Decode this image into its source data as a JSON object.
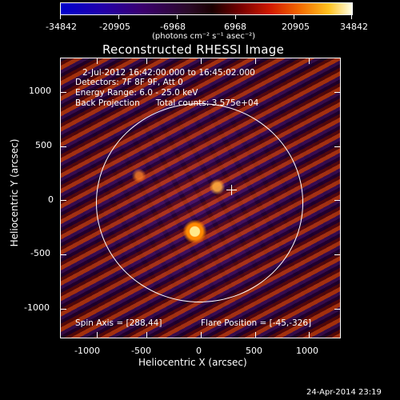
{
  "colorbar": {
    "tick_labels": [
      "-34842",
      "-20905",
      "-6968",
      "6968",
      "20905",
      "34842"
    ],
    "unit_label": "(photons cm⁻² s⁻¹ asec⁻²)",
    "colors": [
      "#0000cc",
      "#3b006e",
      "#1a0000",
      "#d11a00",
      "#f26a00",
      "#ffffe8"
    ]
  },
  "plot": {
    "title": "Reconstructed RHESSI Image",
    "info_lines": [
      "2-Jul-2012 16:42:00.000 to 16:45:02.000",
      "Detectors: 7F 8F 9F, Att 0",
      "Energy Range: 6.0 - 25.0 keV",
      "Back Projection      Total counts: 3.575e+04"
    ],
    "spin_axis": "Spin Axis = [288,44]",
    "flare_position": "Flare Position = [-45,-326]",
    "x_axis_label": "Heliocentric X (arcsec)",
    "y_axis_label": "Heliocentric Y (arcsec)",
    "x_ticks": [
      "-1000",
      "-500",
      "0",
      "500",
      "1000"
    ],
    "y_ticks": [
      "1000",
      "500",
      "0",
      "-500",
      "-1000"
    ],
    "markers": {
      "solar_limb": "circle",
      "cross": "spin-axis-cross"
    }
  },
  "footer": {
    "date_stamp": "24-Apr-2014 23:19"
  }
}
